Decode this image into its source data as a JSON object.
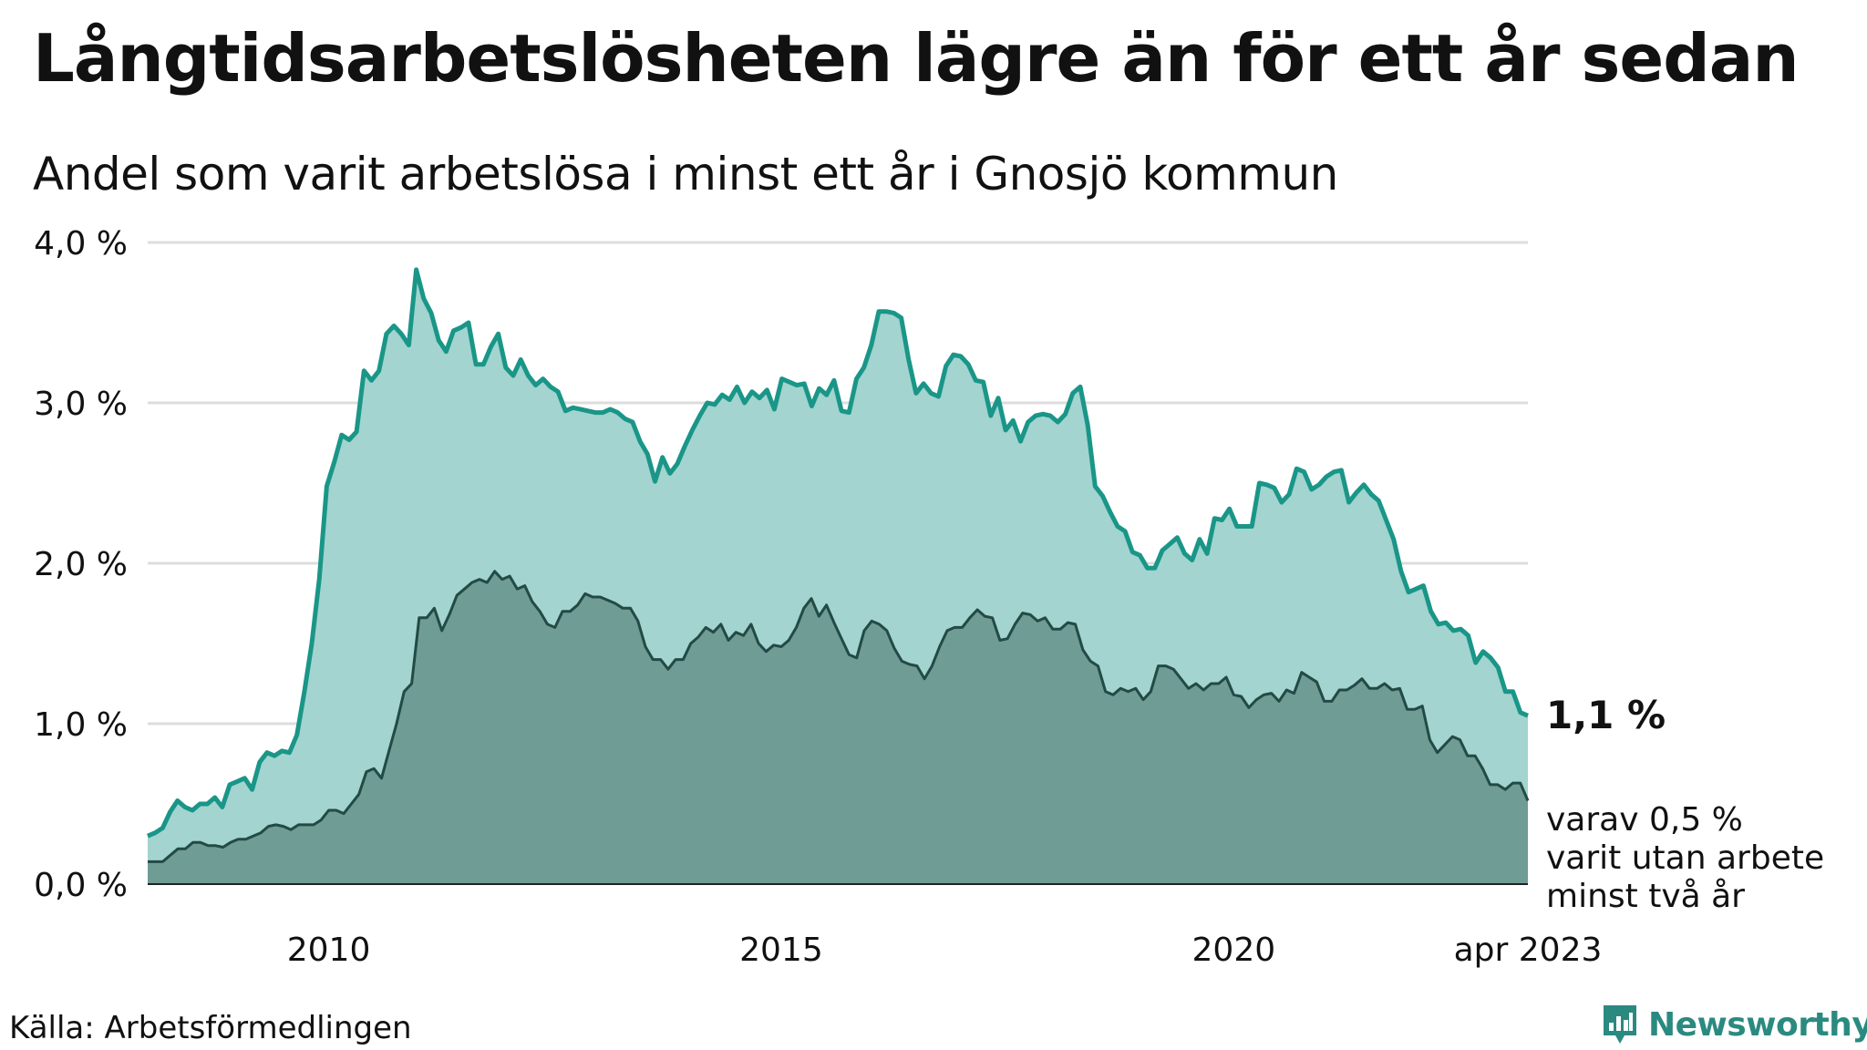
{
  "title": "Långtidsarbetslösheten lägre än för ett år sedan",
  "subtitle": "Andel som varit arbetslösa i minst ett år i Gnosjö kommun",
  "source": "Källa: Arbetsförmedlingen",
  "brand": "Newsworthy",
  "colors": {
    "total_line": "#1a9688",
    "total_fill": "#a3d4cf",
    "twoyear_line": "#234a44",
    "twoyear_fill": "#6f9c95",
    "grid": "#dddddd"
  },
  "annotations": {
    "end_value": "1,1 %",
    "sub_line1": "varav 0,5 %",
    "sub_line2": "varit utan arbete",
    "sub_line3": "minst två år"
  },
  "chart_data": {
    "type": "area",
    "title": "Långtidsarbetslösheten lägre än för ett år sedan",
    "subtitle": "Andel som varit arbetslösa i minst ett år i Gnosjö kommun",
    "x_unit": "month",
    "x_start": "2008-01",
    "x_end": "2023-04",
    "ylim": [
      0,
      4
    ],
    "yticks": [
      0,
      1,
      2,
      3,
      4
    ],
    "ytick_labels": [
      "0,0 %",
      "1,0 %",
      "2,0 %",
      "3,0 %",
      "4,0 %"
    ],
    "xticks": [
      "2010-01",
      "2015-01",
      "2020-01",
      "2023-04"
    ],
    "xtick_labels": [
      "2010",
      "2015",
      "2020",
      "apr 2023"
    ],
    "grid": true,
    "legend": "none",
    "series": [
      {
        "name": "",
        "values": [
          0.3,
          0.32,
          0.35,
          0.45,
          0.52,
          0.48,
          0.46,
          0.5,
          0.5,
          0.54,
          0.48,
          0.62,
          0.64,
          0.66,
          0.59,
          0.76,
          0.82,
          0.8,
          0.83,
          0.82,
          0.93,
          1.2,
          1.5,
          1.9,
          2.48,
          2.63,
          2.8,
          2.77,
          2.82,
          3.2,
          3.14,
          3.2,
          3.43,
          3.48,
          3.43,
          3.36,
          3.83,
          3.65,
          3.56,
          3.39,
          3.32,
          3.45,
          3.47,
          3.5,
          3.24,
          3.24,
          3.35,
          3.43,
          3.22,
          3.17,
          3.27,
          3.17,
          3.11,
          3.15,
          3.1,
          3.07,
          2.95,
          2.97,
          2.96,
          2.95,
          2.94,
          2.94,
          2.96,
          2.94,
          2.9,
          2.88,
          2.76,
          2.68,
          2.51,
          2.66,
          2.56,
          2.62,
          2.73,
          2.83,
          2.92,
          3.0,
          2.99,
          3.05,
          3.02,
          3.1,
          3.0,
          3.07,
          3.03,
          3.08,
          2.96,
          3.15,
          3.13,
          3.11,
          3.12,
          2.98,
          3.09,
          3.05,
          3.14,
          2.95,
          2.94,
          3.15,
          3.22,
          3.36,
          3.57,
          3.57,
          3.56,
          3.53,
          3.27,
          3.06,
          3.12,
          3.06,
          3.04,
          3.23,
          3.3,
          3.29,
          3.24,
          3.14,
          3.13,
          2.92,
          3.03,
          2.83,
          2.89,
          2.76,
          2.88,
          2.92,
          2.93,
          2.92,
          2.88,
          2.93,
          3.06,
          3.1,
          2.86,
          2.48,
          2.42,
          2.32,
          2.23,
          2.2,
          2.07,
          2.05,
          1.97,
          1.97,
          2.08,
          2.12,
          2.16,
          2.06,
          2.02,
          2.15,
          2.06,
          2.28,
          2.27,
          2.34,
          2.23,
          2.23,
          2.23,
          2.5,
          2.49,
          2.47,
          2.38,
          2.43,
          2.59,
          2.57,
          2.46,
          2.49,
          2.54,
          2.57,
          2.58,
          2.38,
          2.44,
          2.49,
          2.43,
          2.39,
          2.27,
          2.15,
          1.95,
          1.82,
          1.84,
          1.86,
          1.7,
          1.62,
          1.63,
          1.58,
          1.59,
          1.55,
          1.38,
          1.45,
          1.41,
          1.35,
          1.2,
          1.2,
          1.07,
          1.05
        ]
      },
      {
        "name": "",
        "values": [
          0.14,
          0.14,
          0.14,
          0.18,
          0.22,
          0.22,
          0.26,
          0.26,
          0.24,
          0.24,
          0.23,
          0.26,
          0.28,
          0.28,
          0.3,
          0.32,
          0.36,
          0.37,
          0.36,
          0.34,
          0.37,
          0.37,
          0.37,
          0.4,
          0.46,
          0.46,
          0.44,
          0.5,
          0.56,
          0.7,
          0.72,
          0.66,
          0.83,
          1.0,
          1.2,
          1.25,
          1.66,
          1.66,
          1.72,
          1.58,
          1.68,
          1.8,
          1.84,
          1.88,
          1.9,
          1.88,
          1.95,
          1.9,
          1.92,
          1.84,
          1.86,
          1.76,
          1.7,
          1.62,
          1.6,
          1.7,
          1.7,
          1.74,
          1.81,
          1.79,
          1.79,
          1.77,
          1.75,
          1.72,
          1.72,
          1.64,
          1.48,
          1.4,
          1.4,
          1.34,
          1.4,
          1.4,
          1.5,
          1.54,
          1.6,
          1.57,
          1.62,
          1.52,
          1.57,
          1.55,
          1.62,
          1.5,
          1.45,
          1.49,
          1.48,
          1.52,
          1.6,
          1.72,
          1.78,
          1.67,
          1.74,
          1.63,
          1.53,
          1.43,
          1.41,
          1.58,
          1.64,
          1.62,
          1.58,
          1.47,
          1.39,
          1.37,
          1.36,
          1.28,
          1.36,
          1.48,
          1.58,
          1.6,
          1.6,
          1.66,
          1.71,
          1.67,
          1.66,
          1.52,
          1.53,
          1.62,
          1.69,
          1.68,
          1.64,
          1.66,
          1.59,
          1.59,
          1.63,
          1.62,
          1.46,
          1.39,
          1.36,
          1.2,
          1.18,
          1.22,
          1.2,
          1.22,
          1.15,
          1.2,
          1.36,
          1.36,
          1.34,
          1.28,
          1.22,
          1.25,
          1.21,
          1.25,
          1.25,
          1.29,
          1.18,
          1.17,
          1.1,
          1.15,
          1.18,
          1.19,
          1.14,
          1.21,
          1.19,
          1.32,
          1.29,
          1.26,
          1.14,
          1.14,
          1.21,
          1.21,
          1.24,
          1.28,
          1.22,
          1.22,
          1.25,
          1.21,
          1.22,
          1.09,
          1.09,
          1.11,
          0.9,
          0.82,
          0.87,
          0.92,
          0.9,
          0.8,
          0.8,
          0.72,
          0.62,
          0.62,
          0.59,
          0.63,
          0.63,
          0.52
        ]
      }
    ]
  }
}
